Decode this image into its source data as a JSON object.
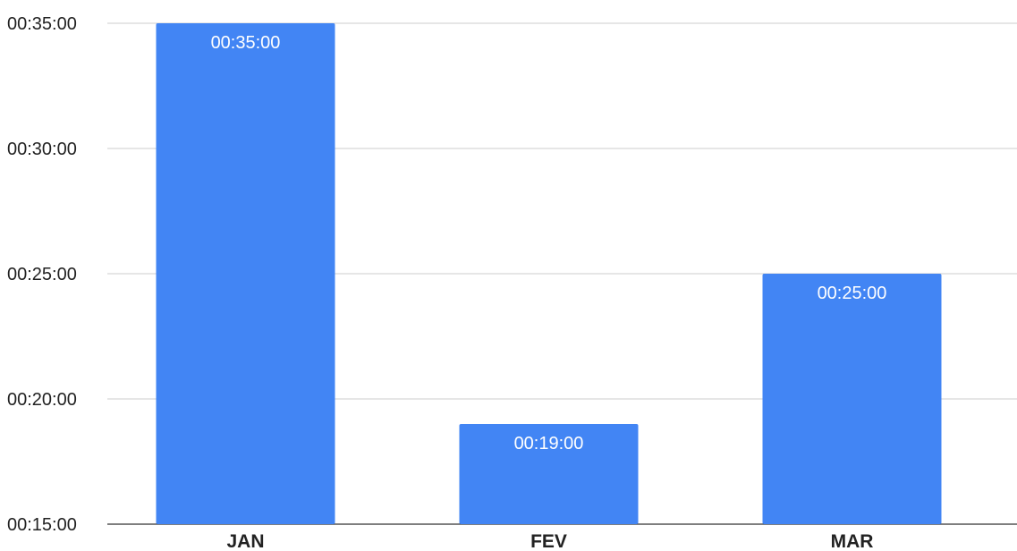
{
  "chart_data": {
    "type": "bar",
    "categories": [
      "JAN",
      "FEV",
      "MAR"
    ],
    "series": [
      {
        "values": [
          "00:35:00",
          "00:19:00",
          "00:25:00"
        ],
        "values_minutes": [
          35,
          19,
          25
        ],
        "color": "#4285f4"
      }
    ],
    "data_labels": [
      "00:35:00",
      "00:19:00",
      "00:25:00"
    ],
    "yaxis": {
      "ticks": [
        "00:15:00",
        "00:20:00",
        "00:25:00",
        "00:30:00",
        "00:35:00"
      ],
      "tick_values_minutes": [
        15,
        20,
        25,
        30,
        35
      ],
      "ylim_minutes": [
        15,
        35
      ]
    },
    "title": "",
    "xlabel": "",
    "ylabel": "",
    "grid": true,
    "legend": "none"
  }
}
